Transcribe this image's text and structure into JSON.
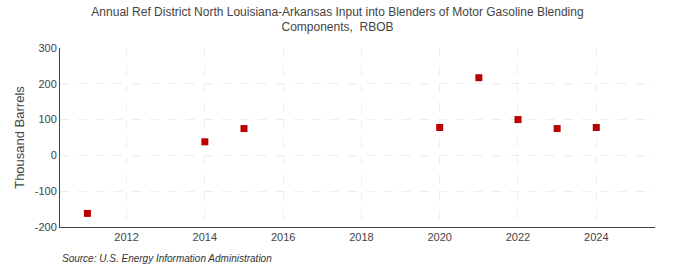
{
  "chart_data": {
    "type": "scatter",
    "title": "Annual Ref District North Louisiana-Arkansas Input into Blenders of Motor Gasoline Blending\nComponents,  RBOB",
    "ylabel": "Thousand Barrels",
    "annotations": [
      "Source: U.S. Energy Information Administration"
    ],
    "x": [
      2011,
      2014,
      2015,
      2020,
      2021,
      2022,
      2023,
      2024
    ],
    "values": [
      -162,
      38,
      75,
      78,
      217,
      100,
      75,
      78
    ],
    "color": "#bb0000",
    "marker": "square",
    "xlim": [
      2010.3,
      2025.5
    ],
    "ylim": [
      -200,
      300
    ],
    "xticks": [
      2012,
      2014,
      2016,
      2018,
      2020,
      2022,
      2024
    ],
    "yticks": [
      -200,
      -100,
      0,
      100,
      200,
      300
    ],
    "grid": true
  }
}
